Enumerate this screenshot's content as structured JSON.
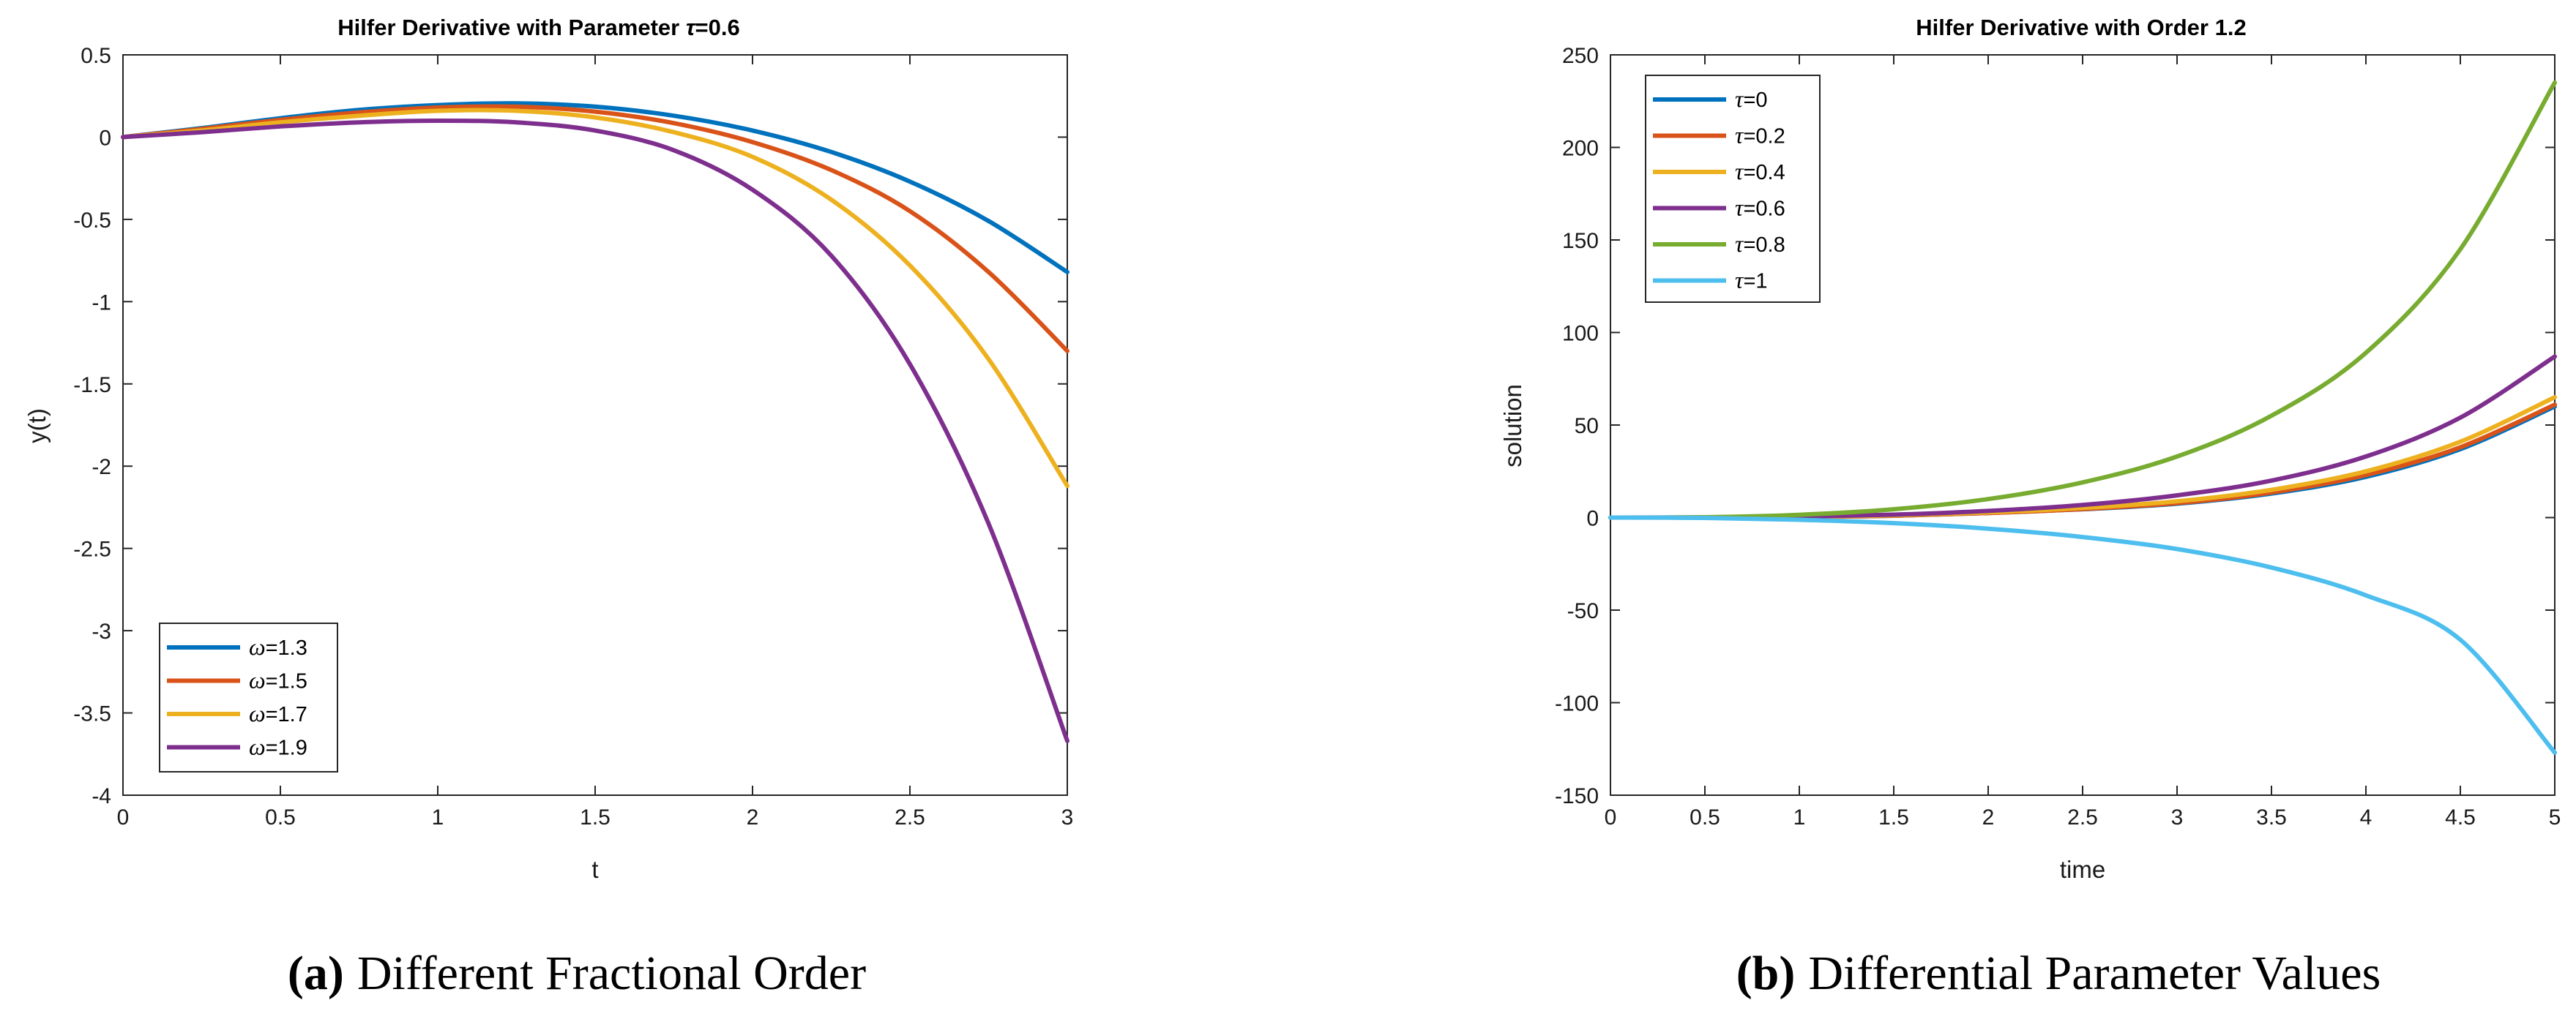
{
  "chart_data": [
    {
      "type": "line",
      "panel": "(a)",
      "caption": "Different Fractional Order",
      "title_prefix": "Hilfer Derivative with Parameter ",
      "title_symbol": "τ",
      "title_suffix": "=0.6",
      "xlabel": "t",
      "ylabel": "y(t)",
      "xlim": [
        0,
        3
      ],
      "ylim": [
        -4,
        0.5
      ],
      "xticks": [
        0,
        0.5,
        1,
        1.5,
        2,
        2.5,
        3
      ],
      "yticks": [
        0.5,
        0,
        -0.5,
        -1,
        -1.5,
        -2,
        -2.5,
        -3,
        -3.5,
        -4
      ],
      "legend_position": "bottom-left",
      "grid": false,
      "x": [
        0,
        0.25,
        0.5,
        0.75,
        1,
        1.25,
        1.5,
        1.75,
        2,
        2.25,
        2.5,
        2.75,
        3
      ],
      "series": [
        {
          "symbol": "ω",
          "label": "=1.3",
          "color": "#0072BD",
          "values": [
            0,
            0.055,
            0.115,
            0.165,
            0.195,
            0.205,
            0.185,
            0.13,
            0.04,
            -0.09,
            -0.27,
            -0.51,
            -0.82
          ]
        },
        {
          "symbol": "ω",
          "label": "=1.5",
          "color": "#D95319",
          "values": [
            0,
            0.05,
            0.105,
            0.15,
            0.18,
            0.185,
            0.155,
            0.085,
            -0.03,
            -0.2,
            -0.45,
            -0.82,
            -1.3
          ]
        },
        {
          "symbol": "ω",
          "label": "=1.7",
          "color": "#EDB120",
          "values": [
            0,
            0.04,
            0.09,
            0.13,
            0.16,
            0.16,
            0.12,
            0.03,
            -0.12,
            -0.38,
            -0.78,
            -1.35,
            -2.12
          ]
        },
        {
          "symbol": "ω",
          "label": "=1.9",
          "color": "#7E2F8E",
          "values": [
            0,
            0.03,
            0.065,
            0.09,
            0.1,
            0.09,
            0.04,
            -0.08,
            -0.32,
            -0.72,
            -1.38,
            -2.35,
            -3.67
          ]
        }
      ]
    },
    {
      "type": "line",
      "panel": "(b)",
      "caption": "Differential Parameter Values",
      "title": "Hilfer Derivative with Order 1.2",
      "xlabel": "time",
      "ylabel": "solution",
      "xlim": [
        0,
        5
      ],
      "ylim": [
        -150,
        250
      ],
      "xticks": [
        0,
        0.5,
        1,
        1.5,
        2,
        2.5,
        3,
        3.5,
        4,
        4.5,
        5
      ],
      "yticks": [
        250,
        200,
        150,
        100,
        50,
        0,
        -50,
        -100,
        -150
      ],
      "legend_position": "top-left",
      "grid": false,
      "x": [
        0,
        0.5,
        1,
        1.5,
        2,
        2.5,
        3,
        3.5,
        4,
        4.5,
        5
      ],
      "series": [
        {
          "symbol": "τ",
          "label": "=0",
          "color": "#0072BD",
          "values": [
            0,
            0,
            0.2,
            1.0,
            2.5,
            4.5,
            7.5,
            13,
            22,
            37,
            60
          ]
        },
        {
          "symbol": "τ",
          "label": "=0.2",
          "color": "#D95319",
          "values": [
            0,
            0,
            0.2,
            1.0,
            2.5,
            4.6,
            7.8,
            13.5,
            23,
            38,
            61
          ]
        },
        {
          "symbol": "τ",
          "label": "=0.4",
          "color": "#EDB120",
          "values": [
            0,
            0,
            0.3,
            1.2,
            2.8,
            5.2,
            8.8,
            15,
            25,
            41,
            65
          ]
        },
        {
          "symbol": "τ",
          "label": "=0.6",
          "color": "#7E2F8E",
          "values": [
            0,
            0.1,
            0.5,
            1.6,
            3.6,
            6.8,
            12,
            20,
            33,
            54,
            87
          ]
        },
        {
          "symbol": "τ",
          "label": "=0.8",
          "color": "#77AC30",
          "values": [
            0,
            0.2,
            1.5,
            4.5,
            10,
            19,
            33,
            55,
            89,
            145,
            235
          ]
        },
        {
          "symbol": "τ",
          "label": "=1",
          "color": "#4DBEEE",
          "values": [
            0,
            -0.2,
            -1.2,
            -3.0,
            -6.0,
            -10.5,
            -17,
            -27,
            -42,
            -66,
            -127
          ]
        }
      ]
    }
  ]
}
